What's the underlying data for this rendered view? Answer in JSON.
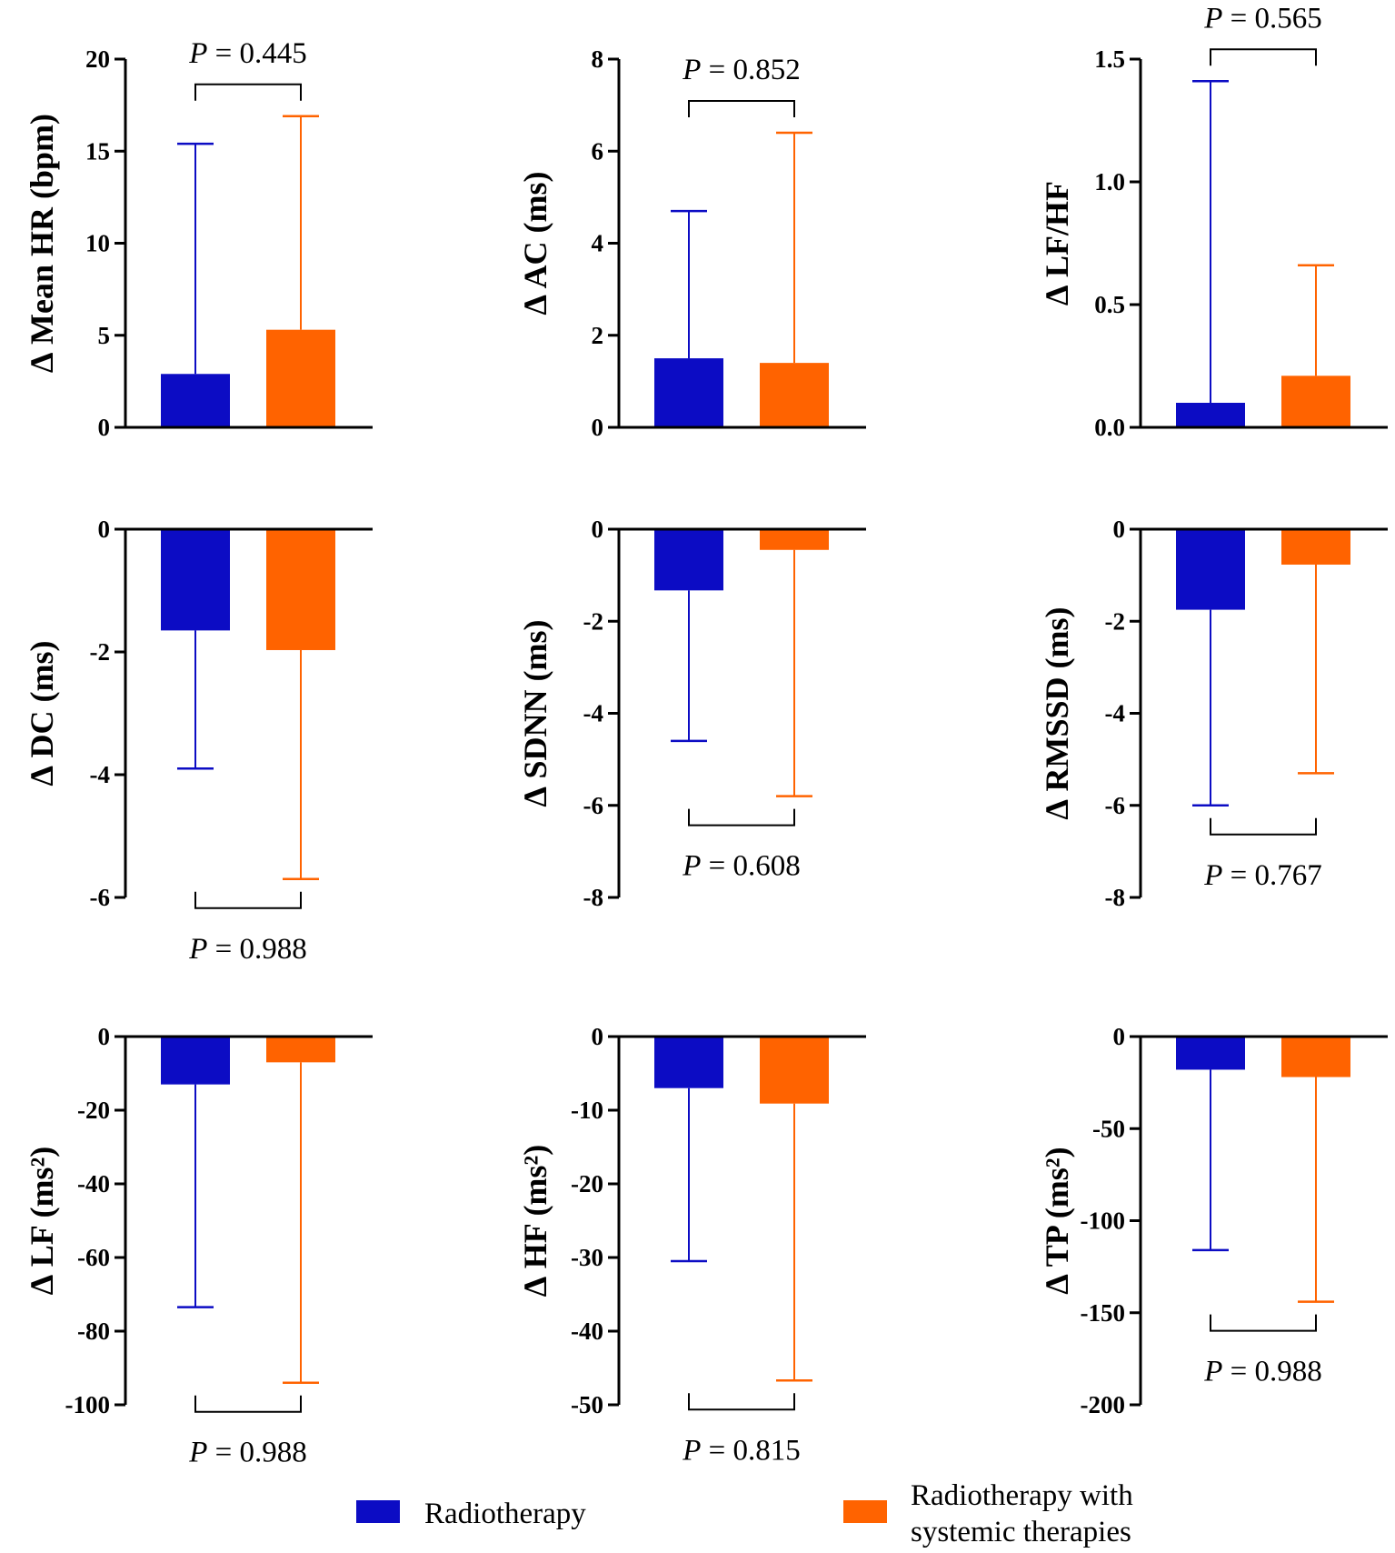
{
  "colors": {
    "radiotherapy": "#0c0cc4",
    "combined": "#ff6300",
    "axis": "#000000"
  },
  "legend": {
    "items": [
      {
        "label": "Radiotherapy",
        "lines": [
          "Radiotherapy"
        ],
        "color": "#0c0cc4"
      },
      {
        "label": "Radiotherapy with systemic therapies",
        "lines": [
          "Radiotherapy with",
          "systemic therapies"
        ],
        "color": "#ff6300"
      }
    ]
  },
  "chart_data": [
    {
      "type": "bar",
      "ylabel": "∆ Mean HR (bpm)",
      "ylim": [
        0,
        20
      ],
      "yticks": [
        0,
        5,
        10,
        15,
        20
      ],
      "tick_labels": [
        "0",
        "5",
        "10",
        "15",
        "20"
      ],
      "categories": [
        "Radiotherapy",
        "Radiotherapy with systemic therapies"
      ],
      "values": [
        2.9,
        5.3
      ],
      "error_ends": [
        15.4,
        16.9
      ],
      "p_value": "P = 0.445",
      "p_position": "top"
    },
    {
      "type": "bar",
      "ylabel": "∆ AC (ms)",
      "ylim": [
        0,
        8
      ],
      "yticks": [
        0,
        2,
        4,
        6,
        8
      ],
      "tick_labels": [
        "0",
        "2",
        "4",
        "6",
        "8"
      ],
      "categories": [
        "Radiotherapy",
        "Radiotherapy with systemic therapies"
      ],
      "values": [
        1.5,
        1.4
      ],
      "error_ends": [
        4.7,
        6.4
      ],
      "p_value": "P = 0.852",
      "p_position": "top"
    },
    {
      "type": "bar",
      "ylabel": "∆ LF/HF",
      "ylim": [
        0,
        1.5
      ],
      "yticks": [
        0,
        0.5,
        1.0,
        1.5
      ],
      "tick_labels": [
        "0.0",
        "0.5",
        "1.0",
        "1.5"
      ],
      "categories": [
        "Radiotherapy",
        "Radiotherapy with systemic therapies"
      ],
      "values": [
        0.1,
        0.21
      ],
      "error_ends": [
        1.41,
        0.66
      ],
      "p_value": "P = 0.565",
      "p_position": "top"
    },
    {
      "type": "bar",
      "ylabel": "∆ DC (ms)",
      "ylim": [
        -6,
        0
      ],
      "yticks": [
        0,
        -2,
        -4,
        -6
      ],
      "tick_labels": [
        "0",
        "-2",
        "-4",
        "-6"
      ],
      "categories": [
        "Radiotherapy",
        "Radiotherapy with systemic therapies"
      ],
      "values": [
        -1.65,
        -1.97
      ],
      "error_ends": [
        -3.9,
        -5.7
      ],
      "p_value": "P = 0.988",
      "p_position": "bottom"
    },
    {
      "type": "bar",
      "ylabel": "∆ SDNN (ms)",
      "ylim": [
        -8,
        0
      ],
      "yticks": [
        0,
        -2,
        -4,
        -6,
        -8
      ],
      "tick_labels": [
        "0",
        "-2",
        "-4",
        "-6",
        "-8"
      ],
      "categories": [
        "Radiotherapy",
        "Radiotherapy with systemic therapies"
      ],
      "values": [
        -1.33,
        -0.45
      ],
      "error_ends": [
        -4.6,
        -5.8
      ],
      "p_value": "P = 0.608",
      "p_position": "bottom"
    },
    {
      "type": "bar",
      "ylabel": "∆ RMSSD (ms)",
      "ylim": [
        -8,
        0
      ],
      "yticks": [
        0,
        -2,
        -4,
        -6,
        -8
      ],
      "tick_labels": [
        "0",
        "-2",
        "-4",
        "-6",
        "-8"
      ],
      "categories": [
        "Radiotherapy",
        "Radiotherapy with systemic therapies"
      ],
      "values": [
        -1.75,
        -0.77
      ],
      "error_ends": [
        -6.0,
        -5.3
      ],
      "p_value": "P = 0.767",
      "p_position": "bottom"
    },
    {
      "type": "bar",
      "ylabel": "∆ LF (ms²)",
      "ylim": [
        -100,
        0
      ],
      "yticks": [
        0,
        -20,
        -40,
        -60,
        -80,
        -100
      ],
      "tick_labels": [
        "0",
        "-20",
        "-40",
        "-60",
        "-80",
        "-100"
      ],
      "categories": [
        "Radiotherapy",
        "Radiotherapy with systemic therapies"
      ],
      "values": [
        -13,
        -7
      ],
      "error_ends": [
        -73.5,
        -94
      ],
      "p_value": "P = 0.988",
      "p_position": "bottom"
    },
    {
      "type": "bar",
      "ylabel": "∆ HF (ms²)",
      "ylim": [
        -50,
        0
      ],
      "yticks": [
        0,
        -10,
        -20,
        -30,
        -40,
        -50
      ],
      "tick_labels": [
        "0",
        "-10",
        "-20",
        "-30",
        "-40",
        "-50"
      ],
      "categories": [
        "Radiotherapy",
        "Radiotherapy with systemic therapies"
      ],
      "values": [
        -7,
        -9.1
      ],
      "error_ends": [
        -30.5,
        -46.7
      ],
      "p_value": "P = 0.815",
      "p_position": "bottom"
    },
    {
      "type": "bar",
      "ylabel": "∆ TP (ms²)",
      "ylim": [
        -200,
        0
      ],
      "yticks": [
        0,
        -50,
        -100,
        -150,
        -200
      ],
      "tick_labels": [
        "0",
        "-50",
        "-100",
        "-150",
        "-200"
      ],
      "categories": [
        "Radiotherapy",
        "Radiotherapy with systemic therapies"
      ],
      "values": [
        -18,
        -22
      ],
      "error_ends": [
        -116,
        -144
      ],
      "p_value": "P = 0.988",
      "p_position": "bottom"
    }
  ]
}
